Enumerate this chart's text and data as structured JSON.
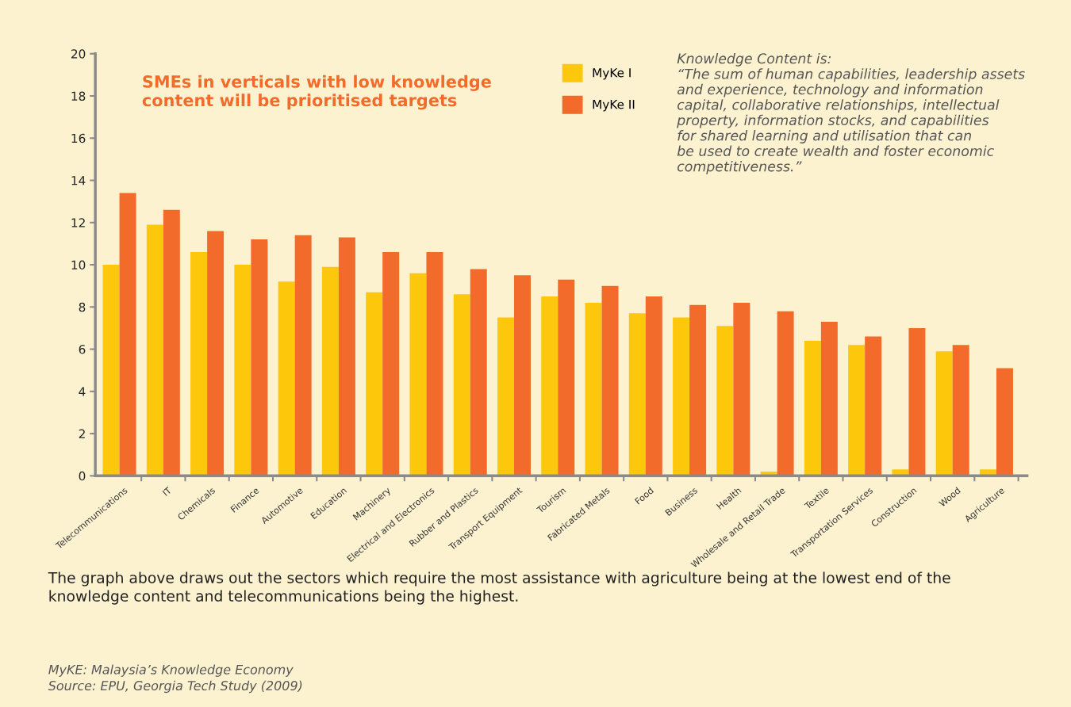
{
  "chart_data": {
    "type": "bar",
    "title": "SMEs in verticals with low knowledge\ncontent will be prioritised targets",
    "categories": [
      "Telecommunications",
      "IT",
      "Chemicals",
      "Finance",
      "Automotive",
      "Education",
      "Machinery",
      "Electrical and Electronics",
      "Rubber and Plastics",
      "Transport Equipment",
      "Tourism",
      "Fabricated Metals",
      "Food",
      "Business",
      "Health",
      "Wholesale and Retail Trade",
      "Textile",
      "Transportation Services",
      "Construction",
      "Wood",
      "Agriculture"
    ],
    "series": [
      {
        "name": "MyKe I",
        "color": "#fdc70c",
        "values": [
          10.0,
          11.9,
          10.6,
          10.0,
          9.2,
          9.9,
          8.7,
          9.6,
          8.6,
          7.5,
          8.5,
          8.2,
          7.7,
          7.5,
          7.1,
          0.2,
          6.4,
          6.2,
          0.3,
          5.9,
          0.3
        ]
      },
      {
        "name": "MyKe II",
        "color": "#f26b2b",
        "values": [
          13.4,
          12.6,
          11.6,
          11.2,
          11.4,
          11.3,
          10.6,
          10.6,
          9.8,
          9.5,
          9.3,
          9.0,
          8.5,
          8.1,
          8.2,
          7.8,
          7.3,
          6.6,
          7.0,
          6.2,
          5.1
        ]
      }
    ],
    "ylim": [
      0,
      20
    ],
    "yticks": [
      0,
      2,
      4,
      6,
      8,
      10,
      12,
      14,
      16,
      18,
      20
    ],
    "grid": false,
    "legend": "top",
    "annotations": [
      "Knowledge Content is:\n“The sum of human capabilities, leadership assets\nand experience, technology and information\ncapital, collaborative relationships, intellectual\nproperty, information stocks, and capabilities\nfor shared learning and utilisation that can\nbe used to create wealth and foster economic\ncompetitiveness.”",
      "The graph above draws out the sectors which require the most assistance with agriculture being at the lowest end of the\nknowledge content and telecommunications being the highest.",
      "MyKE: Malaysia’s Knowledge Economy\nSource: EPU, Georgia Tech Study (2009)"
    ]
  }
}
